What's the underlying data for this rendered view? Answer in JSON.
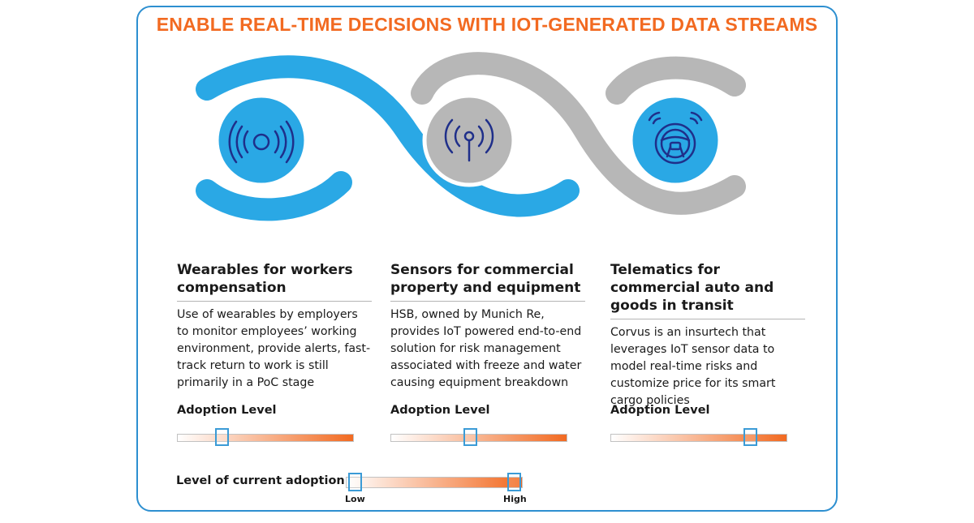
{
  "title": "ENABLE REAL-TIME DECISIONS WITH IOT-GENERATED DATA STREAMS",
  "colors": {
    "title": "#f26a21",
    "blue": "#2aa8e5",
    "gray": "#b7b7b7",
    "icon_stroke": "#1f2f8a",
    "frame": "#2d8fd0",
    "bar_start": "#ffffff",
    "bar_end": "#f26a21",
    "marker": "#3b9bd6"
  },
  "columns": [
    {
      "icon": "wearable-signal-icon",
      "heading": "Wearables for workers compensation",
      "body": "Use of wearables by employers to monitor employees’ working environment, provide alerts, fast-track return to work is still primarily in a PoC stage",
      "adoption_label": "Adoption Level",
      "adoption_level": 0.25
    },
    {
      "icon": "sensor-antenna-icon",
      "heading": "Sensors for commercial property and equipment",
      "body": "HSB, owned by Munich Re, provides IoT powered end-to-end solution for risk management associated with freeze and water causing equipment breakdown",
      "adoption_label": "Adoption Level",
      "adoption_level": 0.45
    },
    {
      "icon": "steering-wheel-icon",
      "heading": "Telematics for commercial auto and goods in transit",
      "body": "Corvus is an insurtech that leverages IoT sensor data to model real-time risks and customize price for its smart cargo policies",
      "adoption_label": "Adoption Level",
      "adoption_level": 0.79
    }
  ],
  "legend": {
    "label": "Level of current adoption:",
    "low": "Low",
    "high": "High"
  }
}
